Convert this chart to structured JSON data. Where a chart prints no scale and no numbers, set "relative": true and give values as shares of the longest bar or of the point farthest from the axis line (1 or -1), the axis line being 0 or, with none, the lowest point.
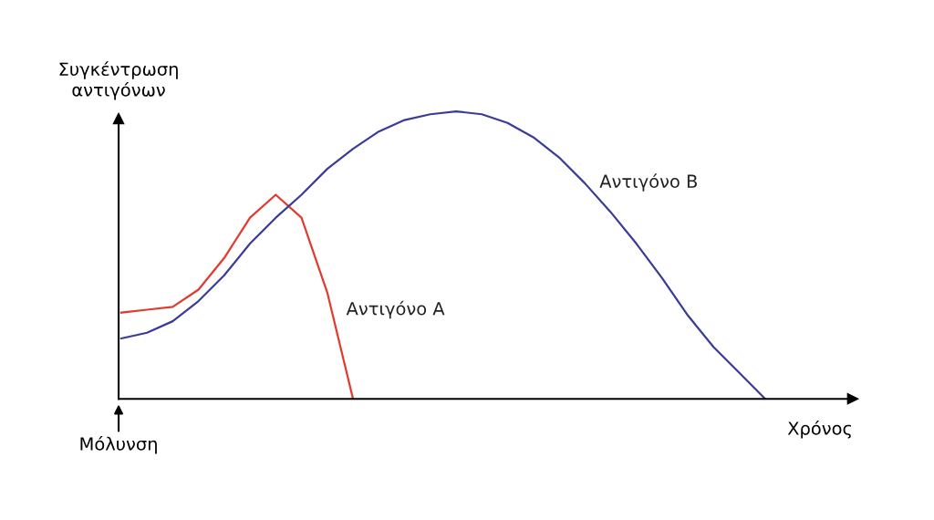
{
  "chart_data": {
    "type": "line",
    "relative": true,
    "ylabel": "Συγκέντρωση\nαντιγόνων",
    "xlabel": "Χρόνος",
    "annotations": [
      "Μόλυνση"
    ],
    "categories": [
      null,
      null,
      null,
      null,
      null,
      null,
      null,
      null,
      null,
      null,
      null,
      null,
      null,
      null,
      null,
      null,
      null,
      null,
      null,
      null,
      null,
      null,
      null,
      null,
      null,
      null
    ],
    "series": [
      {
        "name": "Αντιγόνο Α",
        "color": "#e23a2e",
        "values": [
          0.3,
          0.31,
          0.32,
          0.38,
          0.49,
          0.63,
          0.71,
          0.63,
          0.37,
          0,
          null,
          null,
          null,
          null,
          null,
          null,
          null,
          null,
          null,
          null,
          null,
          null,
          null,
          null,
          null,
          null
        ]
      },
      {
        "name": "Αντιγόνο Β",
        "color": "#3b3b9a",
        "values": [
          0.21,
          0.23,
          0.27,
          0.34,
          0.43,
          0.54,
          0.63,
          0.71,
          0.8,
          0.87,
          0.93,
          0.97,
          0.99,
          1.0,
          0.99,
          0.96,
          0.91,
          0.84,
          0.75,
          0.65,
          0.54,
          0.42,
          0.29,
          0.18,
          0.09,
          0
        ]
      }
    ],
    "grid": false,
    "legend": false,
    "marker": "none",
    "line_style": "solid"
  }
}
